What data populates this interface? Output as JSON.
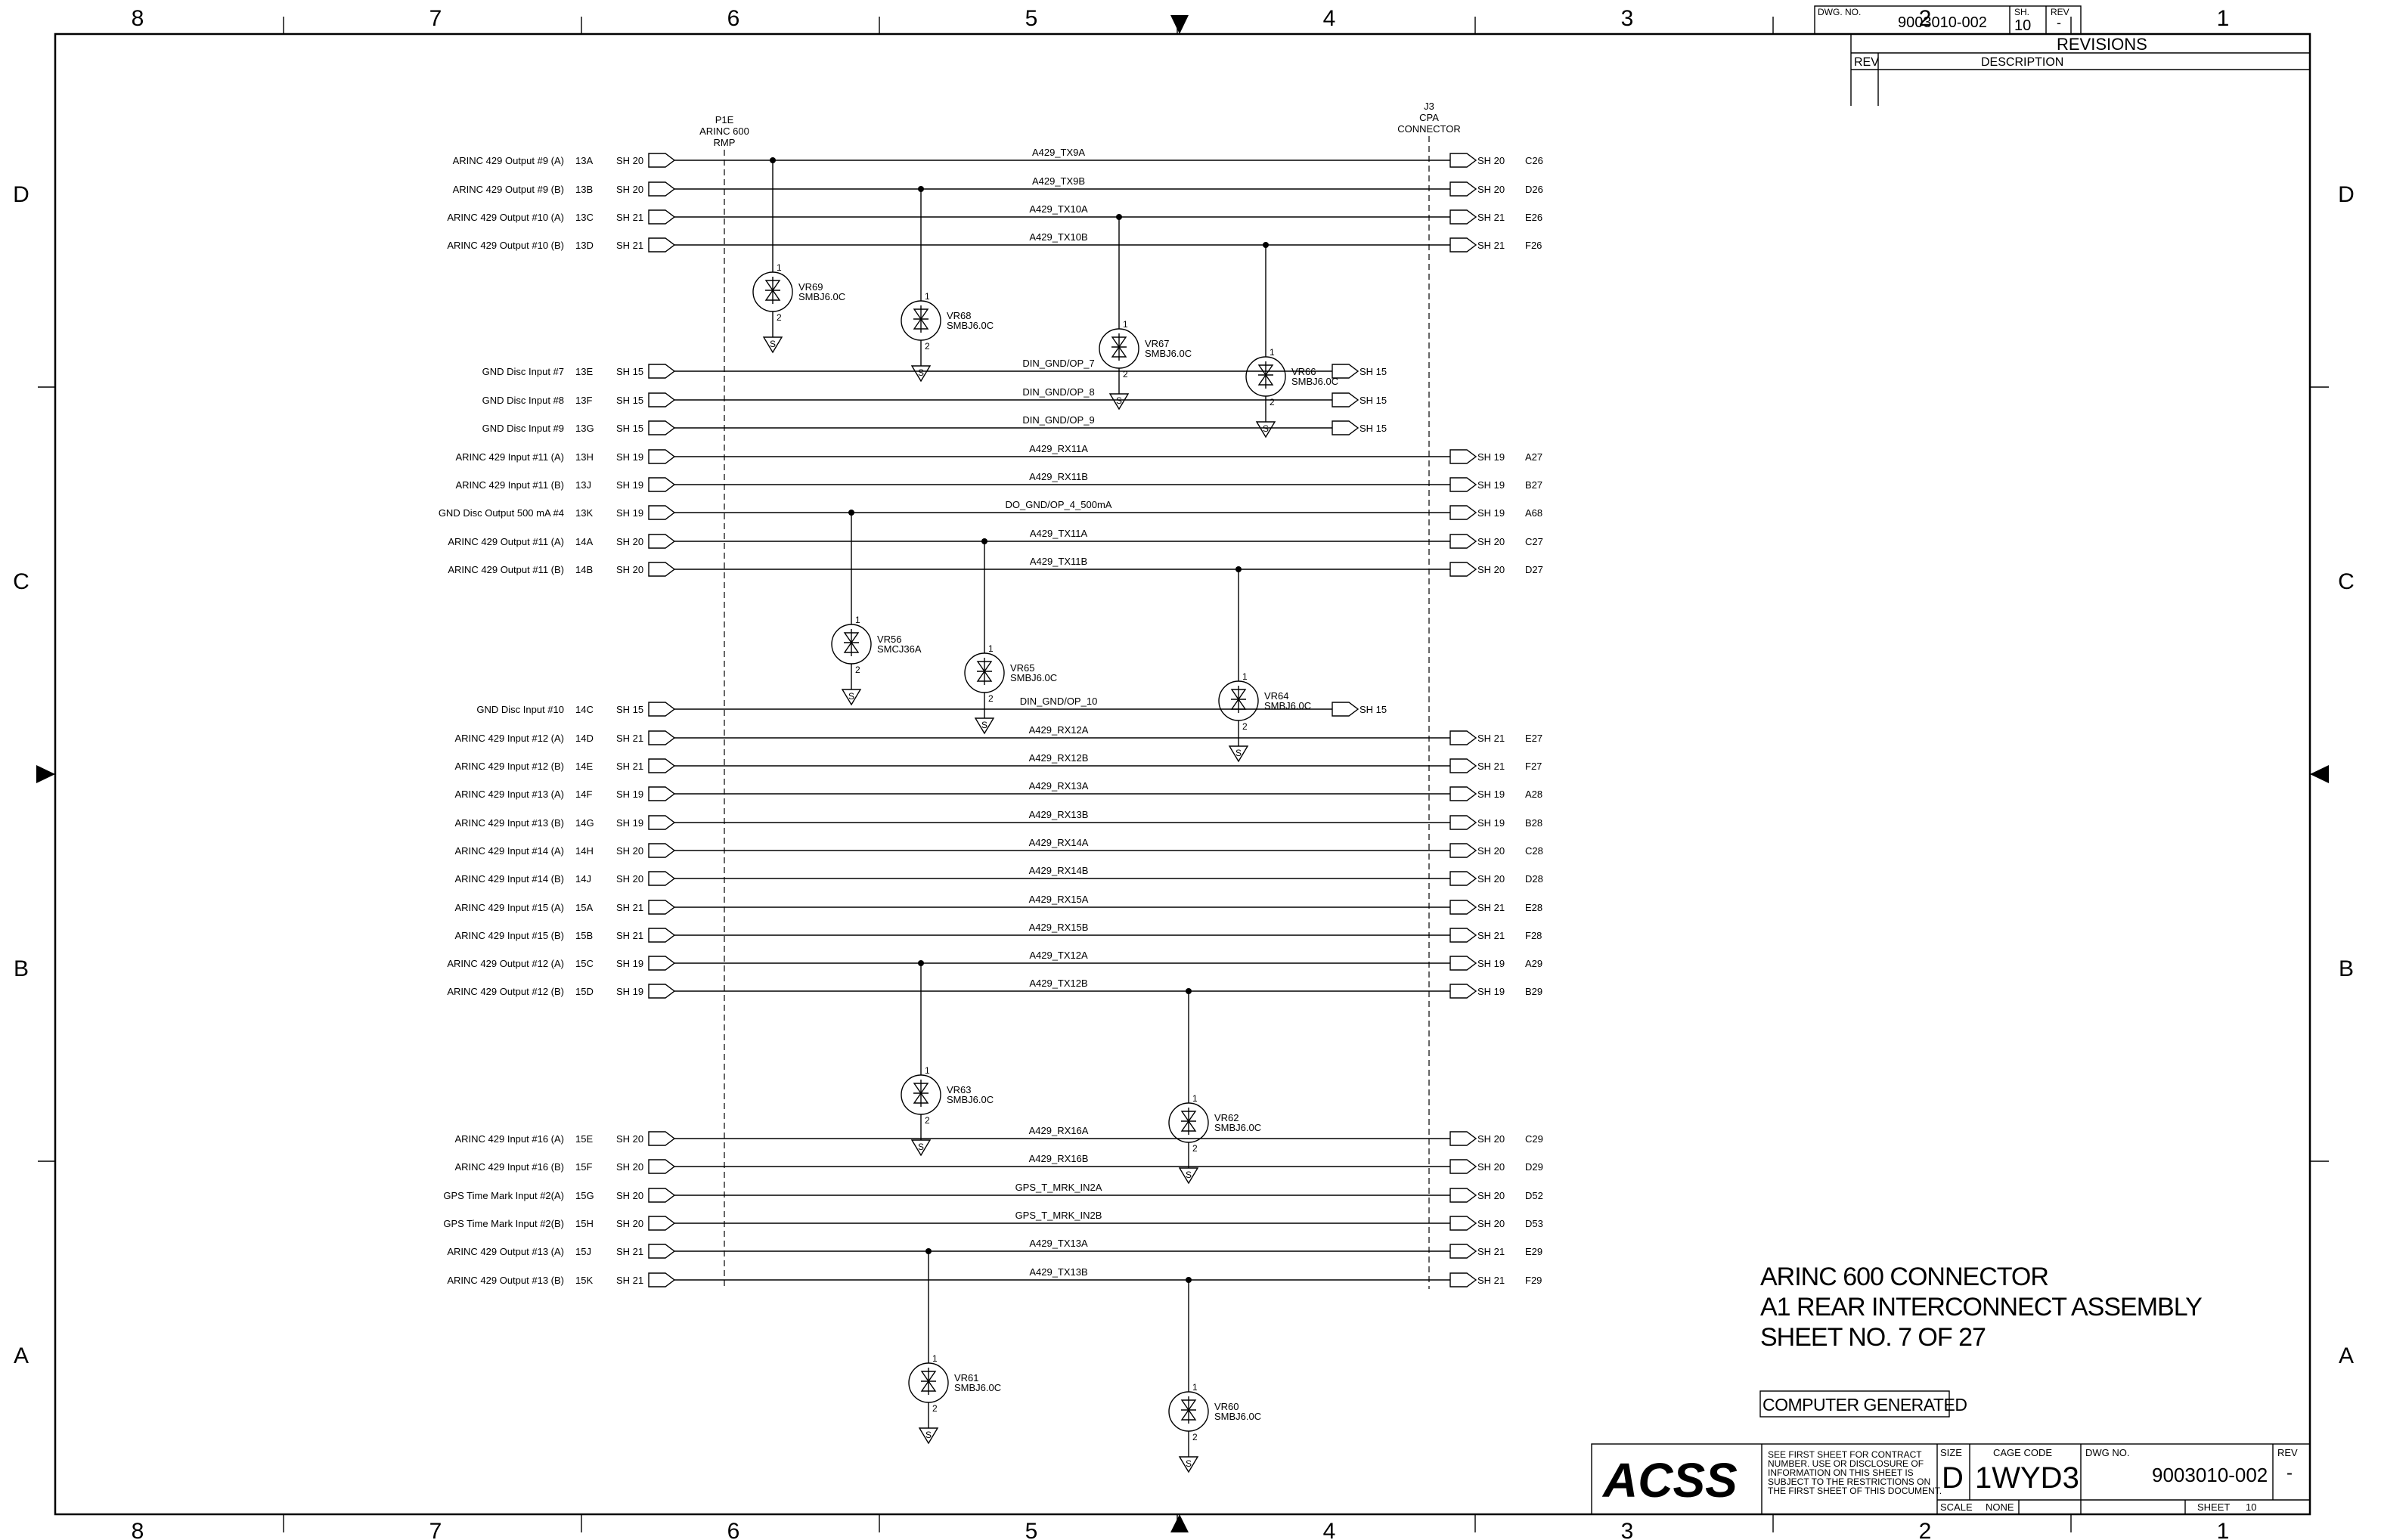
{
  "frame": {
    "zones_top": [
      "8",
      "7",
      "6",
      "5",
      "4",
      "3",
      "2",
      "1"
    ],
    "zones_side": [
      "D",
      "C",
      "B",
      "A"
    ]
  },
  "header": {
    "dwg_no_label": "DWG. NO.",
    "dwg_no": "9003010-002",
    "sh_label": "SH.",
    "sh": "10",
    "rev_label": "REV",
    "rev": "-"
  },
  "revisions": {
    "title": "REVISIONS",
    "rev_col": "REV",
    "desc_col": "DESCRIPTION"
  },
  "connectors": {
    "left": [
      "P1E",
      "ARINC 600",
      "RMP"
    ],
    "right": [
      "J3",
      "CPA",
      "CONNECTOR"
    ]
  },
  "signals": [
    {
      "label": "ARINC 429 Output #9 (A)",
      "pin": "13A",
      "sh": "SH 20",
      "net": "A429_TX9A",
      "rsh": "SH 20",
      "rpin": "C26"
    },
    {
      "label": "ARINC 429 Output #9 (B)",
      "pin": "13B",
      "sh": "SH 20",
      "net": "A429_TX9B",
      "rsh": "SH 20",
      "rpin": "D26"
    },
    {
      "label": "ARINC 429 Output #10 (A)",
      "pin": "13C",
      "sh": "SH 21",
      "net": "A429_TX10A",
      "rsh": "SH 21",
      "rpin": "E26"
    },
    {
      "label": "ARINC 429 Output #10 (B)",
      "pin": "13D",
      "sh": "SH 21",
      "net": "A429_TX10B",
      "rsh": "SH 21",
      "rpin": "F26"
    },
    {
      "label": "GND Disc Input #7",
      "pin": "13E",
      "sh": "SH 15",
      "net": "DIN_GND/OP_7",
      "rsh": "SH 15",
      "rpin": ""
    },
    {
      "label": "GND Disc Input #8",
      "pin": "13F",
      "sh": "SH 15",
      "net": "DIN_GND/OP_8",
      "rsh": "SH 15",
      "rpin": ""
    },
    {
      "label": "GND Disc Input #9",
      "pin": "13G",
      "sh": "SH 15",
      "net": "DIN_GND/OP_9",
      "rsh": "SH 15",
      "rpin": ""
    },
    {
      "label": "ARINC 429 Input #11 (A)",
      "pin": "13H",
      "sh": "SH 19",
      "net": "A429_RX11A",
      "rsh": "SH 19",
      "rpin": "A27"
    },
    {
      "label": "ARINC 429 Input #11 (B)",
      "pin": "13J",
      "sh": "SH 19",
      "net": "A429_RX11B",
      "rsh": "SH 19",
      "rpin": "B27"
    },
    {
      "label": "GND Disc Output 500 mA #4",
      "pin": "13K",
      "sh": "SH 19",
      "net": "DO_GND/OP_4_500mA",
      "rsh": "SH 19",
      "rpin": "A68"
    },
    {
      "label": "ARINC 429 Output #11 (A)",
      "pin": "14A",
      "sh": "SH 20",
      "net": "A429_TX11A",
      "rsh": "SH 20",
      "rpin": "C27"
    },
    {
      "label": "ARINC 429 Output #11 (B)",
      "pin": "14B",
      "sh": "SH 20",
      "net": "A429_TX11B",
      "rsh": "SH 20",
      "rpin": "D27"
    },
    {
      "label": "GND Disc Input #10",
      "pin": "14C",
      "sh": "SH 15",
      "net": "DIN_GND/OP_10",
      "rsh": "SH 15",
      "rpin": ""
    },
    {
      "label": "ARINC 429 Input #12 (A)",
      "pin": "14D",
      "sh": "SH 21",
      "net": "A429_RX12A",
      "rsh": "SH 21",
      "rpin": "E27"
    },
    {
      "label": "ARINC 429 Input #12 (B)",
      "pin": "14E",
      "sh": "SH 21",
      "net": "A429_RX12B",
      "rsh": "SH 21",
      "rpin": "F27"
    },
    {
      "label": "ARINC 429 Input #13 (A)",
      "pin": "14F",
      "sh": "SH 19",
      "net": "A429_RX13A",
      "rsh": "SH 19",
      "rpin": "A28"
    },
    {
      "label": "ARINC 429 Input #13 (B)",
      "pin": "14G",
      "sh": "SH 19",
      "net": "A429_RX13B",
      "rsh": "SH 19",
      "rpin": "B28"
    },
    {
      "label": "ARINC 429 Input #14 (A)",
      "pin": "14H",
      "sh": "SH 20",
      "net": "A429_RX14A",
      "rsh": "SH 20",
      "rpin": "C28"
    },
    {
      "label": "ARINC 429 Input #14 (B)",
      "pin": "14J",
      "sh": "SH 20",
      "net": "A429_RX14B",
      "rsh": "SH 20",
      "rpin": "D28"
    },
    {
      "label": "ARINC 429 Input #15 (A)",
      "pin": "15A",
      "sh": "SH 21",
      "net": "A429_RX15A",
      "rsh": "SH 21",
      "rpin": "E28"
    },
    {
      "label": "ARINC 429 Input #15 (B)",
      "pin": "15B",
      "sh": "SH 21",
      "net": "A429_RX15B",
      "rsh": "SH 21",
      "rpin": "F28"
    },
    {
      "label": "ARINC 429 Output #12 (A)",
      "pin": "15C",
      "sh": "SH 19",
      "net": "A429_TX12A",
      "rsh": "SH 19",
      "rpin": "A29"
    },
    {
      "label": "ARINC 429 Output #12 (B)",
      "pin": "15D",
      "sh": "SH 19",
      "net": "A429_TX12B",
      "rsh": "SH 19",
      "rpin": "B29"
    },
    {
      "label": "ARINC 429 Input #16 (A)",
      "pin": "15E",
      "sh": "SH 20",
      "net": "A429_RX16A",
      "rsh": "SH 20",
      "rpin": "C29"
    },
    {
      "label": "ARINC 429 Input #16 (B)",
      "pin": "15F",
      "sh": "SH 20",
      "net": "A429_RX16B",
      "rsh": "SH 20",
      "rpin": "D29"
    },
    {
      "label": "GPS Time Mark Input #2(A)",
      "pin": "15G",
      "sh": "SH 20",
      "net": "GPS_T_MRK_IN2A",
      "rsh": "SH 20",
      "rpin": "D52"
    },
    {
      "label": "GPS Time Mark Input #2(B)",
      "pin": "15H",
      "sh": "SH 20",
      "net": "GPS_T_MRK_IN2B",
      "rsh": "SH 20",
      "rpin": "D53"
    },
    {
      "label": "ARINC 429 Output #13 (A)",
      "pin": "15J",
      "sh": "SH 21",
      "net": "A429_TX13A",
      "rsh": "SH 21",
      "rpin": "E29"
    },
    {
      "label": "ARINC 429 Output #13 (B)",
      "pin": "15K",
      "sh": "SH 21",
      "net": "A429_TX13B",
      "rsh": "SH 21",
      "rpin": "F29"
    }
  ],
  "diodes": [
    {
      "ref": "VR69",
      "part": "SMBJ6.0C",
      "row": 0
    },
    {
      "ref": "VR68",
      "part": "SMBJ6.0C",
      "row": 1
    },
    {
      "ref": "VR67",
      "part": "SMBJ6.0C",
      "row": 2
    },
    {
      "ref": "VR66",
      "part": "SMBJ6.0C",
      "row": 3
    },
    {
      "ref": "VR56",
      "part": "SMCJ36A",
      "row": 9
    },
    {
      "ref": "VR65",
      "part": "SMBJ6.0C",
      "row": 10
    },
    {
      "ref": "VR64",
      "part": "SMBJ6.0C",
      "row": 11
    },
    {
      "ref": "VR63",
      "part": "SMBJ6.0C",
      "row": 21
    },
    {
      "ref": "VR62",
      "part": "SMBJ6.0C",
      "row": 22
    },
    {
      "ref": "VR61",
      "part": "SMBJ6.0C",
      "row": 27
    },
    {
      "ref": "VR60",
      "part": "SMBJ6.0C",
      "row": 28
    }
  ],
  "pin1": "1",
  "pin2": "2",
  "ground": "S",
  "title_block": {
    "line1": "ARINC 600 CONNECTOR",
    "line2": "A1 REAR INTERCONNECT ASSEMBLY",
    "line3": "SHEET NO. 7 OF 27",
    "computer_generated": "COMPUTER GENERATED",
    "company": "ACSS",
    "notice": [
      "SEE FIRST SHEET FOR CONTRACT",
      "NUMBER.  USE OR DISCLOSURE OF",
      "INFORMATION ON THIS SHEET IS",
      "SUBJECT TO THE RESTRICTIONS ON",
      "THE FIRST SHEET OF THIS DOCUMENT."
    ],
    "size_label": "SIZE",
    "size": "D",
    "cage_label": "CAGE CODE",
    "cage": "1WYD3",
    "dwg_label": "DWG NO.",
    "dwg": "9003010-002",
    "rev_label": "REV",
    "rev": "-",
    "scale_label": "SCALE",
    "scale": "NONE",
    "sheet_label": "SHEET",
    "sheet": "10"
  }
}
